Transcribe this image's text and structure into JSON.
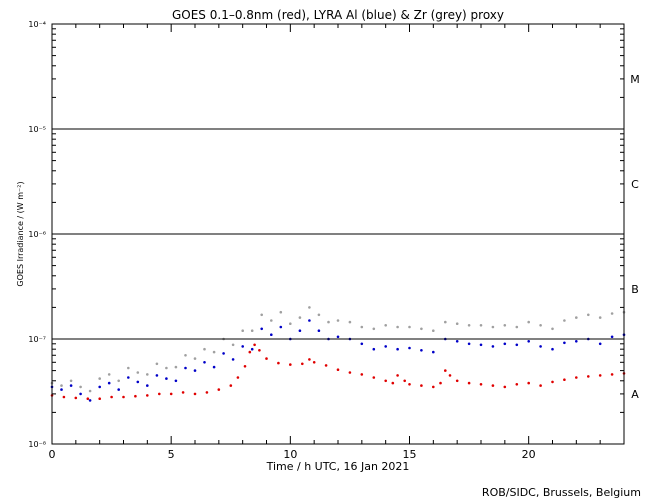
{
  "chart_data": {
    "type": "scatter",
    "title": "GOES 0.1–0.8nm (red), LYRA Al (blue) & Zr (grey) proxy",
    "xlabel": "Time / h UTC, 16 Jan 2021",
    "ylabel": "GOES Irradiance / (W m⁻²)",
    "credit": "ROB/SIDC, Brussels, Belgium",
    "xlim": [
      0,
      24
    ],
    "ylim": [
      1e-08,
      0.0001
    ],
    "yscale": "log",
    "x_ticks": [
      {
        "v": 0,
        "label": "0"
      },
      {
        "v": 5,
        "label": "5"
      },
      {
        "v": 10,
        "label": "10"
      },
      {
        "v": 15,
        "label": "15"
      },
      {
        "v": 20,
        "label": "20"
      }
    ],
    "y_ticks": [
      {
        "v": 1e-08,
        "label": "10⁻⁸"
      },
      {
        "v": 1e-07,
        "label": "10⁻⁷"
      },
      {
        "v": 1e-06,
        "label": "10⁻⁶"
      },
      {
        "v": 1e-05,
        "label": "10⁻⁵"
      },
      {
        "v": 0.0001,
        "label": "10⁻⁴"
      }
    ],
    "flare_classes": [
      {
        "label": "A",
        "y": 3e-08
      },
      {
        "label": "B",
        "y": 3e-07
      },
      {
        "label": "C",
        "y": 3e-06
      },
      {
        "label": "M",
        "y": 3e-05
      }
    ],
    "threshold_lines": [
      1e-07,
      1e-06,
      1e-05
    ],
    "series": [
      {
        "color": "#e00000",
        "x": [
          0,
          0.5,
          1,
          1.5,
          2,
          2.5,
          3,
          3.5,
          4,
          4.5,
          5,
          5.5,
          6,
          6.5,
          7,
          7.5,
          7.8,
          8.1,
          8.3,
          8.5,
          8.7,
          9,
          9.5,
          10,
          10.5,
          10.8,
          11,
          11.5,
          12,
          12.5,
          13,
          13.5,
          14,
          14.3,
          14.5,
          14.8,
          15,
          15.5,
          16,
          16.3,
          16.5,
          16.7,
          17,
          17.5,
          18,
          18.5,
          19,
          19.5,
          20,
          20.5,
          21,
          21.5,
          22,
          22.5,
          23,
          23.5,
          24
        ],
        "y": [
          2.9e-08,
          2.8e-08,
          2.75e-08,
          2.7e-08,
          2.7e-08,
          2.8e-08,
          2.8e-08,
          2.85e-08,
          2.9e-08,
          3e-08,
          3e-08,
          3.1e-08,
          3e-08,
          3.1e-08,
          3.3e-08,
          3.6e-08,
          4.3e-08,
          5.5e-08,
          7.5e-08,
          8.8e-08,
          7.8e-08,
          6.5e-08,
          5.9e-08,
          5.7e-08,
          5.8e-08,
          6.4e-08,
          6e-08,
          5.6e-08,
          5.1e-08,
          4.8e-08,
          4.6e-08,
          4.3e-08,
          4e-08,
          3.8e-08,
          4.5e-08,
          4e-08,
          3.7e-08,
          3.6e-08,
          3.5e-08,
          3.8e-08,
          5e-08,
          4.5e-08,
          4e-08,
          3.8e-08,
          3.7e-08,
          3.6e-08,
          3.5e-08,
          3.7e-08,
          3.8e-08,
          3.6e-08,
          3.9e-08,
          4.1e-08,
          4.3e-08,
          4.4e-08,
          4.5e-08,
          4.6e-08,
          4.7e-08
        ]
      },
      {
        "color": "#0000c8",
        "x": [
          0,
          0.4,
          0.8,
          1.2,
          1.6,
          2.0,
          2.4,
          2.8,
          3.2,
          3.6,
          4.0,
          4.4,
          4.8,
          5.2,
          5.6,
          6.0,
          6.4,
          6.8,
          7.2,
          7.6,
          8.0,
          8.4,
          8.8,
          9.2,
          9.6,
          10.0,
          10.4,
          10.8,
          11.2,
          11.6,
          12.0,
          12.5,
          13.0,
          13.5,
          14.0,
          14.5,
          15.0,
          15.5,
          16.0,
          16.5,
          17.0,
          17.5,
          18.0,
          18.5,
          19.0,
          19.5,
          20.0,
          20.5,
          21.0,
          21.5,
          22.0,
          22.5,
          23.0,
          23.5,
          24.0
        ],
        "y": [
          3.5e-08,
          3.3e-08,
          3.6e-08,
          3e-08,
          2.6e-08,
          3.5e-08,
          3.8e-08,
          3.3e-08,
          4.3e-08,
          3.9e-08,
          3.6e-08,
          4.5e-08,
          4.2e-08,
          4e-08,
          5.3e-08,
          5e-08,
          6e-08,
          5.4e-08,
          7.3e-08,
          6.4e-08,
          8.5e-08,
          8e-08,
          1.25e-07,
          1.1e-07,
          1.3e-07,
          1e-07,
          1.2e-07,
          1.5e-07,
          1.2e-07,
          1e-07,
          1.05e-07,
          1e-07,
          9e-08,
          8e-08,
          8.5e-08,
          8e-08,
          8.2e-08,
          7.8e-08,
          7.5e-08,
          1e-07,
          9.5e-08,
          9e-08,
          8.8e-08,
          8.5e-08,
          9e-08,
          8.8e-08,
          9.5e-08,
          8.5e-08,
          8e-08,
          9.2e-08,
          9.5e-08,
          1e-07,
          9e-08,
          1.05e-07,
          1.1e-07
        ]
      },
      {
        "color": "#a0a0a0",
        "x": [
          0,
          0.4,
          0.8,
          1.2,
          1.6,
          2.0,
          2.4,
          2.8,
          3.2,
          3.6,
          4.0,
          4.4,
          4.8,
          5.2,
          5.6,
          6.0,
          6.4,
          6.8,
          7.2,
          7.6,
          8.0,
          8.4,
          8.8,
          9.2,
          9.6,
          10.0,
          10.4,
          10.8,
          11.2,
          11.6,
          12.0,
          12.5,
          13.0,
          13.5,
          14.0,
          14.5,
          15.0,
          15.5,
          16.0,
          16.5,
          17.0,
          17.5,
          18.0,
          18.5,
          19.0,
          19.5,
          20.0,
          20.5,
          21.0,
          21.5,
          22.0,
          22.5,
          23.0,
          23.5,
          24.0
        ],
        "y": [
          3.8e-08,
          3.6e-08,
          4e-08,
          3.5e-08,
          3.2e-08,
          4.2e-08,
          4.6e-08,
          4e-08,
          5.3e-08,
          4.8e-08,
          4.6e-08,
          5.8e-08,
          5.3e-08,
          5.4e-08,
          7e-08,
          6.5e-08,
          8e-08,
          7.5e-08,
          1e-07,
          8.8e-08,
          1.2e-07,
          1.2e-07,
          1.7e-07,
          1.5e-07,
          1.8e-07,
          1.4e-07,
          1.6e-07,
          2e-07,
          1.7e-07,
          1.45e-07,
          1.5e-07,
          1.45e-07,
          1.3e-07,
          1.25e-07,
          1.35e-07,
          1.3e-07,
          1.3e-07,
          1.25e-07,
          1.2e-07,
          1.45e-07,
          1.4e-07,
          1.35e-07,
          1.35e-07,
          1.3e-07,
          1.35e-07,
          1.3e-07,
          1.45e-07,
          1.35e-07,
          1.25e-07,
          1.5e-07,
          1.6e-07,
          1.7e-07,
          1.6e-07,
          1.75e-07,
          1.8e-07
        ]
      }
    ]
  }
}
